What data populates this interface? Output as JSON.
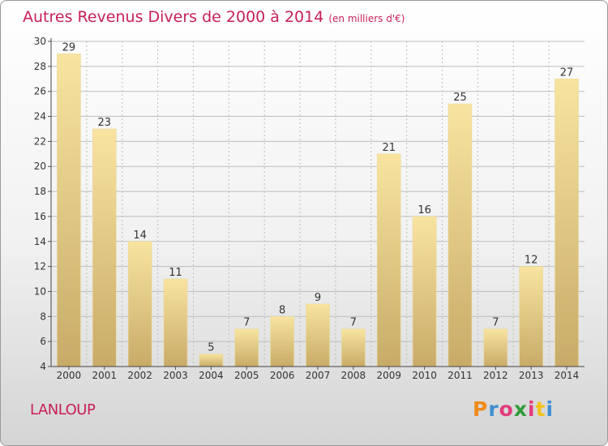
{
  "header": {
    "title": "Autres Revenus Divers de 2000 à 2014",
    "unit": "(en milliers d'€)"
  },
  "footer": {
    "town": "LANLOUP",
    "logo": "Proxiti"
  },
  "colors": {
    "title": "#c71f5a",
    "bar_light": "#f8e4a0",
    "bar_dark": "#c8ab68",
    "grid": "#bdbdbd"
  },
  "chart_data": {
    "type": "bar",
    "title": "Autres Revenus Divers de 2000 à 2014",
    "subtitle": "(en milliers d'€)",
    "xlabel": "",
    "ylabel": "",
    "categories": [
      "2000",
      "2001",
      "2002",
      "2003",
      "2004",
      "2005",
      "2006",
      "2007",
      "2008",
      "2009",
      "2010",
      "2011",
      "2012",
      "2013",
      "2014"
    ],
    "values": [
      29,
      23,
      14,
      11,
      5,
      7,
      8,
      9,
      7,
      21,
      16,
      25,
      7,
      12,
      27
    ],
    "ylim": [
      4,
      30
    ],
    "yticks": [
      4,
      6,
      8,
      10,
      12,
      14,
      16,
      18,
      20,
      22,
      24,
      26,
      28,
      30
    ],
    "grid": true,
    "legend": "none"
  }
}
